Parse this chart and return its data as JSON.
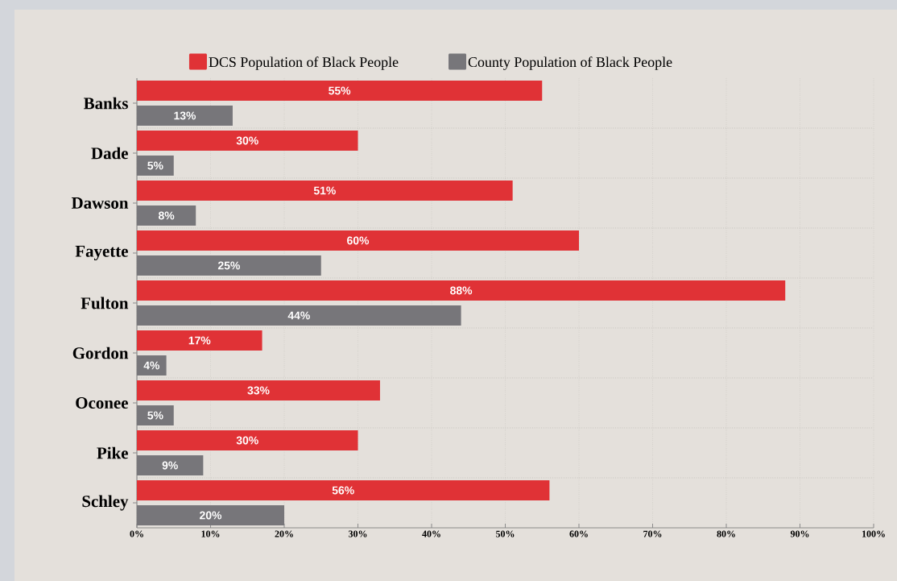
{
  "chart_data": {
    "type": "bar",
    "orientation": "horizontal",
    "categories": [
      "Banks",
      "Dade",
      "Dawson",
      "Fayette",
      "Fulton",
      "Gordon",
      "Oconee",
      "Pike",
      "Schley"
    ],
    "series": [
      {
        "name": "DCS Population of Black People",
        "color": "#e03236",
        "values": [
          55,
          30,
          51,
          60,
          88,
          17,
          33,
          30,
          56
        ],
        "value_labels": [
          "55%",
          "30%",
          "51%",
          "60%",
          "88%",
          "17%",
          "33%",
          "30%",
          "56%"
        ]
      },
      {
        "name": "County Population of Black People",
        "color": "#77767a",
        "values": [
          13,
          5,
          8,
          25,
          44,
          4,
          5,
          9,
          20
        ],
        "value_labels": [
          "13%",
          "5%",
          "8%",
          "25%",
          "44%",
          "4%",
          "5%",
          "9%",
          "20%"
        ]
      }
    ],
    "xlim": [
      0,
      100
    ],
    "xticks": [
      {
        "value": 0,
        "label": "0%"
      },
      {
        "value": 10,
        "label": "10%"
      },
      {
        "value": 20,
        "label": "20%"
      },
      {
        "value": 30,
        "label": "30%"
      },
      {
        "value": 40,
        "label": "40%"
      },
      {
        "value": 50,
        "label": "50%"
      },
      {
        "value": 60,
        "label": "60%"
      },
      {
        "value": 70,
        "label": "70%"
      },
      {
        "value": 80,
        "label": "80%"
      },
      {
        "value": 90,
        "label": "90%"
      },
      {
        "value": 100,
        "label": "100%"
      }
    ],
    "grid": true,
    "legend": "top"
  }
}
